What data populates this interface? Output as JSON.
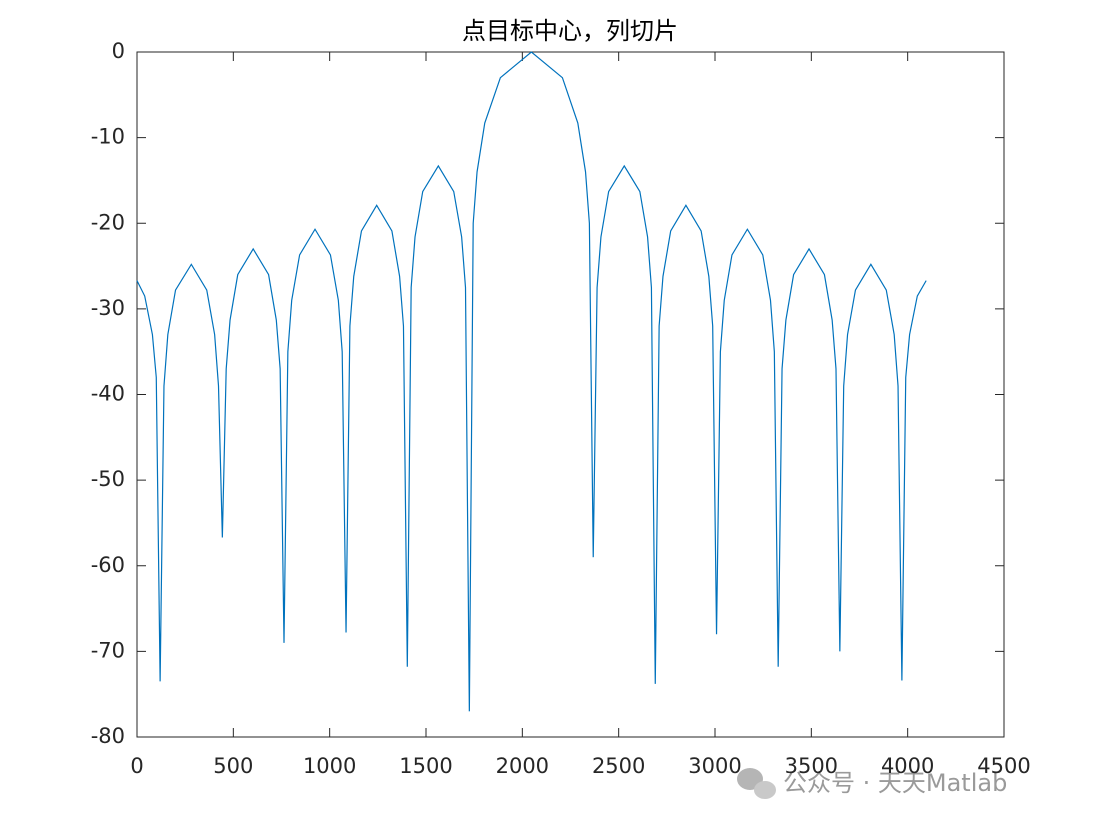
{
  "chart_data": {
    "type": "line",
    "title": "点目标中心，列切片",
    "x": [
      0,
      40,
      80,
      100,
      120,
      140,
      160,
      200,
      282,
      362,
      403,
      423,
      443,
      463,
      483,
      523,
      603,
      683,
      723,
      743,
      763,
      783,
      803,
      844,
      924,
      1004,
      1045,
      1065,
      1085,
      1105,
      1125,
      1165,
      1244,
      1323,
      1363,
      1383,
      1403,
      1423,
      1443,
      1483,
      1564,
      1644,
      1685,
      1705,
      1725,
      1745,
      1765,
      1805,
      1886,
      2047,
      2208,
      2288,
      2328,
      2348,
      2368,
      2388,
      2408,
      2448,
      2529,
      2610,
      2650,
      2670,
      2690,
      2710,
      2730,
      2770,
      2849,
      2928,
      2968,
      2988,
      3008,
      3028,
      3048,
      3088,
      3168,
      3248,
      3288,
      3308,
      3328,
      3348,
      3368,
      3408,
      3488,
      3568,
      3608,
      3628,
      3648,
      3668,
      3688,
      3729,
      3809,
      3889,
      3930,
      3950,
      3970,
      3990,
      4010,
      4050,
      4096
    ],
    "values": [
      -26.7,
      -28.5,
      -33,
      -38,
      -73.5,
      -39,
      -33,
      -27.8,
      -24.8,
      -27.8,
      -33,
      -39,
      -56.7,
      -37,
      -31.3,
      -26,
      -23,
      -26,
      -31.3,
      -37,
      -69,
      -35,
      -29,
      -23.7,
      -20.7,
      -23.7,
      -29,
      -35,
      -67.8,
      -32,
      -26.2,
      -20.9,
      -17.9,
      -20.9,
      -26.2,
      -32,
      -71.8,
      -27.5,
      -21.6,
      -16.3,
      -13.3,
      -16.3,
      -21.6,
      -27.5,
      -77,
      -20,
      -14,
      -8.3,
      -3,
      0,
      -3,
      -8.3,
      -14,
      -20,
      -59,
      -27.5,
      -21.6,
      -16.3,
      -13.3,
      -16.3,
      -21.6,
      -27.5,
      -73.8,
      -32,
      -26.2,
      -20.9,
      -17.9,
      -20.9,
      -26.2,
      -32,
      -68,
      -35,
      -29,
      -23.7,
      -20.7,
      -23.7,
      -29,
      -35,
      -71.8,
      -37,
      -31.3,
      -26,
      -23,
      -26,
      -31.3,
      -37,
      -70,
      -39,
      -33,
      -27.8,
      -24.8,
      -27.8,
      -33,
      -39,
      -73.4,
      -38,
      -33,
      -28.5,
      -26.7
    ],
    "color": "#0072bd",
    "xlim": [
      0,
      4500
    ],
    "xticks": [
      0,
      500,
      1000,
      1500,
      2000,
      2500,
      3000,
      3500,
      4000,
      4500
    ],
    "ylim": [
      -80,
      0
    ],
    "yticks": [
      -80,
      -70,
      -60,
      -50,
      -40,
      -30,
      -20,
      -10,
      0
    ]
  },
  "watermark": "公众号 · 天天Matlab"
}
